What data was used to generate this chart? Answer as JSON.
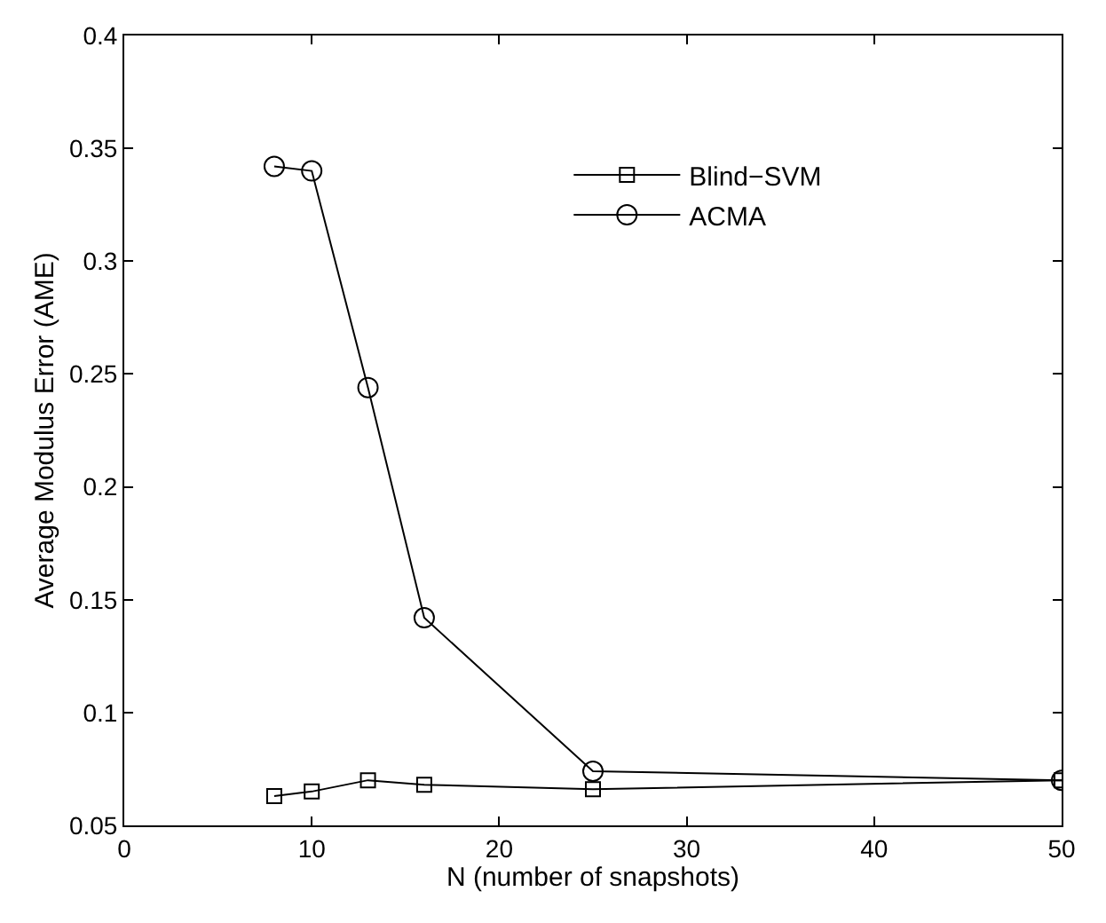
{
  "chart_data": {
    "type": "line",
    "xlabel": "N (number of snapshots)",
    "ylabel": "Average Modulus Error (AME)",
    "xlim": [
      0,
      50
    ],
    "xticks": [
      0,
      10,
      20,
      30,
      40,
      50
    ],
    "ylim": [
      0.05,
      0.4
    ],
    "yticks": [
      0.05,
      0.1,
      0.15,
      0.2,
      0.25,
      0.3,
      0.35,
      0.4
    ],
    "grid": false,
    "legend": "top right",
    "line_style": "solid",
    "x": [
      8,
      10,
      13,
      16,
      25,
      50
    ],
    "series": [
      {
        "name": "Blind−SVM",
        "color": "#000000",
        "marker": "square",
        "values": [
          0.063,
          0.065,
          0.07,
          0.068,
          0.066,
          0.07
        ]
      },
      {
        "name": "ACMA",
        "color": "#000000",
        "marker": "circle",
        "values": [
          0.342,
          0.34,
          0.244,
          0.142,
          0.074,
          0.07
        ]
      }
    ]
  }
}
